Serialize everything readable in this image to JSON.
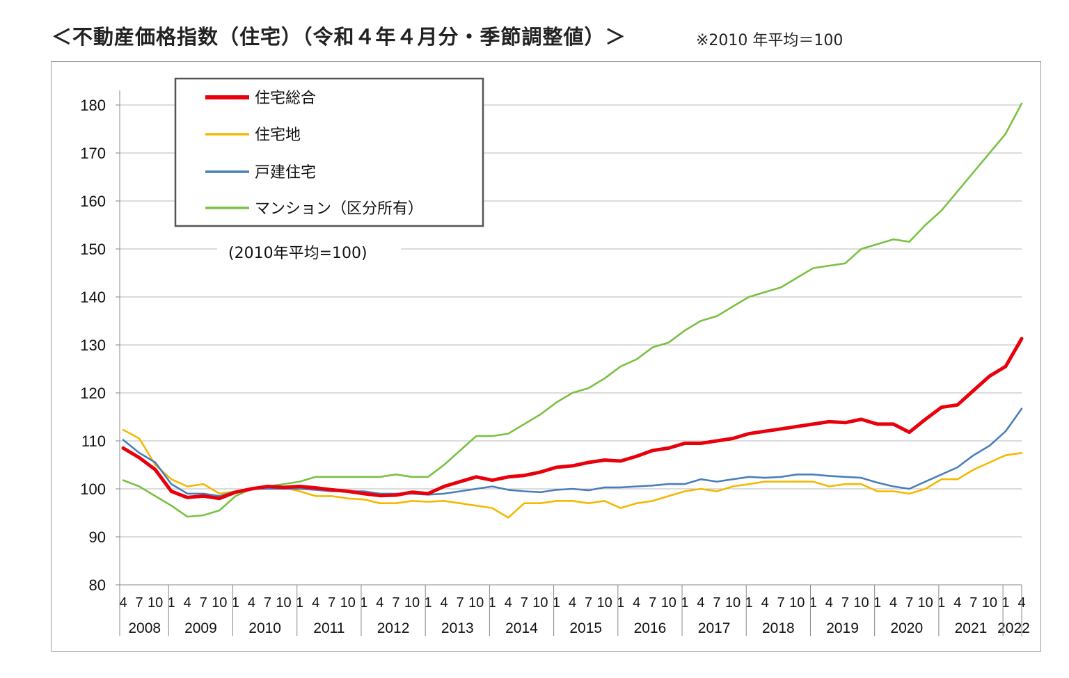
{
  "header": {
    "title": "＜不動産価格指数（住宅）（令和４年４月分・季節調整値）＞",
    "note": "※2010 年平均＝100"
  },
  "chart_data": {
    "type": "line",
    "title": "＜不動産価格指数（住宅）（令和４年４月分・季節調整値）＞",
    "basis_note": "(2010年平均=100)",
    "ylim": [
      80,
      180
    ],
    "yticks": [
      80,
      90,
      100,
      110,
      120,
      130,
      140,
      150,
      160,
      170,
      180
    ],
    "grid": true,
    "legend_position": "top-left",
    "x_period": {
      "start": "2008-04",
      "end": "2022-04",
      "frequency": "monthly"
    },
    "years": [
      "2008",
      "2009",
      "2010",
      "2011",
      "2012",
      "2013",
      "2014",
      "2015",
      "2016",
      "2017",
      "2018",
      "2019",
      "2020",
      "2021",
      "2022"
    ],
    "month_ticks": [
      "1",
      "4",
      "7",
      "10"
    ],
    "series": [
      {
        "name": "住宅総合",
        "color": "#e8000b",
        "points": [
          [
            "2008-04",
            108.5
          ],
          [
            "2008-07",
            106.5
          ],
          [
            "2008-10",
            104
          ],
          [
            "2009-01",
            99.5
          ],
          [
            "2009-04",
            98.2
          ],
          [
            "2009-07",
            98.5
          ],
          [
            "2009-10",
            98
          ],
          [
            "2010-01",
            99.3
          ],
          [
            "2010-04",
            100
          ],
          [
            "2010-07",
            100.5
          ],
          [
            "2010-10",
            100.3
          ],
          [
            "2011-01",
            100.5
          ],
          [
            "2011-04",
            100.2
          ],
          [
            "2011-07",
            99.8
          ],
          [
            "2011-10",
            99.5
          ],
          [
            "2012-01",
            99
          ],
          [
            "2012-04",
            98.6
          ],
          [
            "2012-07",
            98.7
          ],
          [
            "2012-10",
            99.3
          ],
          [
            "2013-01",
            99
          ],
          [
            "2013-04",
            100.5
          ],
          [
            "2013-07",
            101.5
          ],
          [
            "2013-10",
            102.5
          ],
          [
            "2014-01",
            101.8
          ],
          [
            "2014-04",
            102.5
          ],
          [
            "2014-07",
            102.8
          ],
          [
            "2014-10",
            103.5
          ],
          [
            "2015-01",
            104.5
          ],
          [
            "2015-04",
            104.8
          ],
          [
            "2015-07",
            105.5
          ],
          [
            "2015-10",
            106
          ],
          [
            "2016-01",
            105.8
          ],
          [
            "2016-04",
            106.8
          ],
          [
            "2016-07",
            108
          ],
          [
            "2016-10",
            108.5
          ],
          [
            "2017-01",
            109.5
          ],
          [
            "2017-04",
            109.5
          ],
          [
            "2017-07",
            110
          ],
          [
            "2017-10",
            110.5
          ],
          [
            "2018-01",
            111.5
          ],
          [
            "2018-04",
            112
          ],
          [
            "2018-07",
            112.5
          ],
          [
            "2018-10",
            113
          ],
          [
            "2019-01",
            113.5
          ],
          [
            "2019-04",
            114
          ],
          [
            "2019-07",
            113.8
          ],
          [
            "2019-10",
            114.5
          ],
          [
            "2020-01",
            113.5
          ],
          [
            "2020-04",
            113.5
          ],
          [
            "2020-07",
            111.8
          ],
          [
            "2020-10",
            114.5
          ],
          [
            "2021-01",
            117
          ],
          [
            "2021-04",
            117.5
          ],
          [
            "2021-07",
            120.5
          ],
          [
            "2021-10",
            123.5
          ],
          [
            "2022-01",
            125.5
          ],
          [
            "2022-04",
            131.3
          ]
        ]
      },
      {
        "name": "住宅地",
        "color": "#f5b800",
        "points": [
          [
            "2008-04",
            112.3
          ],
          [
            "2008-07",
            110.5
          ],
          [
            "2008-10",
            105
          ],
          [
            "2009-01",
            102
          ],
          [
            "2009-04",
            100.5
          ],
          [
            "2009-07",
            101
          ],
          [
            "2009-10",
            99
          ],
          [
            "2010-01",
            99.5
          ],
          [
            "2010-04",
            100
          ],
          [
            "2010-07",
            100.5
          ],
          [
            "2010-10",
            100.3
          ],
          [
            "2011-01",
            99.5
          ],
          [
            "2011-04",
            98.5
          ],
          [
            "2011-07",
            98.5
          ],
          [
            "2011-10",
            98
          ],
          [
            "2012-01",
            97.8
          ],
          [
            "2012-04",
            97
          ],
          [
            "2012-07",
            97
          ],
          [
            "2012-10",
            97.5
          ],
          [
            "2013-01",
            97.3
          ],
          [
            "2013-04",
            97.5
          ],
          [
            "2013-07",
            97
          ],
          [
            "2013-10",
            96.5
          ],
          [
            "2014-01",
            96
          ],
          [
            "2014-04",
            94
          ],
          [
            "2014-07",
            97
          ],
          [
            "2014-10",
            97
          ],
          [
            "2015-01",
            97.5
          ],
          [
            "2015-04",
            97.5
          ],
          [
            "2015-07",
            97
          ],
          [
            "2015-10",
            97.5
          ],
          [
            "2016-01",
            96
          ],
          [
            "2016-04",
            97
          ],
          [
            "2016-07",
            97.5
          ],
          [
            "2016-10",
            98.5
          ],
          [
            "2017-01",
            99.5
          ],
          [
            "2017-04",
            100
          ],
          [
            "2017-07",
            99.5
          ],
          [
            "2017-10",
            100.5
          ],
          [
            "2018-01",
            101
          ],
          [
            "2018-04",
            101.5
          ],
          [
            "2018-07",
            101.5
          ],
          [
            "2018-10",
            101.5
          ],
          [
            "2019-01",
            101.5
          ],
          [
            "2019-04",
            100.5
          ],
          [
            "2019-07",
            101
          ],
          [
            "2019-10",
            101
          ],
          [
            "2020-01",
            99.5
          ],
          [
            "2020-04",
            99.5
          ],
          [
            "2020-07",
            99
          ],
          [
            "2020-10",
            100
          ],
          [
            "2021-01",
            102
          ],
          [
            "2021-04",
            102
          ],
          [
            "2021-07",
            104
          ],
          [
            "2021-10",
            105.5
          ],
          [
            "2022-01",
            107
          ],
          [
            "2022-04",
            107.5
          ]
        ]
      },
      {
        "name": "戸建住宅",
        "color": "#4a7ebb",
        "points": [
          [
            "2008-04",
            110.2
          ],
          [
            "2008-07",
            107.5
          ],
          [
            "2008-10",
            105.5
          ],
          [
            "2009-01",
            101
          ],
          [
            "2009-04",
            99
          ],
          [
            "2009-07",
            99
          ],
          [
            "2009-10",
            98.5
          ],
          [
            "2010-01",
            99.5
          ],
          [
            "2010-04",
            100
          ],
          [
            "2010-07",
            100
          ],
          [
            "2010-10",
            100
          ],
          [
            "2011-01",
            100
          ],
          [
            "2011-04",
            99.8
          ],
          [
            "2011-07",
            99.5
          ],
          [
            "2011-10",
            99.5
          ],
          [
            "2012-01",
            99.5
          ],
          [
            "2012-04",
            99
          ],
          [
            "2012-07",
            99
          ],
          [
            "2012-10",
            99
          ],
          [
            "2013-01",
            98.8
          ],
          [
            "2013-04",
            99
          ],
          [
            "2013-07",
            99.5
          ],
          [
            "2013-10",
            100
          ],
          [
            "2014-01",
            100.5
          ],
          [
            "2014-04",
            99.8
          ],
          [
            "2014-07",
            99.5
          ],
          [
            "2014-10",
            99.3
          ],
          [
            "2015-01",
            99.8
          ],
          [
            "2015-04",
            100
          ],
          [
            "2015-07",
            99.7
          ],
          [
            "2015-10",
            100.3
          ],
          [
            "2016-01",
            100.3
          ],
          [
            "2016-04",
            100.5
          ],
          [
            "2016-07",
            100.7
          ],
          [
            "2016-10",
            101
          ],
          [
            "2017-01",
            101
          ],
          [
            "2017-04",
            102
          ],
          [
            "2017-07",
            101.5
          ],
          [
            "2017-10",
            102
          ],
          [
            "2018-01",
            102.5
          ],
          [
            "2018-04",
            102.3
          ],
          [
            "2018-07",
            102.5
          ],
          [
            "2018-10",
            103
          ],
          [
            "2019-01",
            103
          ],
          [
            "2019-04",
            102.7
          ],
          [
            "2019-07",
            102.5
          ],
          [
            "2019-10",
            102.3
          ],
          [
            "2020-01",
            101.3
          ],
          [
            "2020-04",
            100.5
          ],
          [
            "2020-07",
            100
          ],
          [
            "2020-10",
            101.5
          ],
          [
            "2021-01",
            103
          ],
          [
            "2021-04",
            104.5
          ],
          [
            "2021-07",
            107
          ],
          [
            "2021-10",
            109
          ],
          [
            "2022-01",
            112
          ],
          [
            "2022-04",
            116.7
          ]
        ]
      },
      {
        "name": "マンション（区分所有）",
        "color": "#7ac143",
        "points": [
          [
            "2008-04",
            101.8
          ],
          [
            "2008-07",
            100.5
          ],
          [
            "2008-10",
            98.5
          ],
          [
            "2009-01",
            96.5
          ],
          [
            "2009-04",
            94.2
          ],
          [
            "2009-07",
            94.5
          ],
          [
            "2009-10",
            95.5
          ],
          [
            "2010-01",
            98.5
          ],
          [
            "2010-04",
            100
          ],
          [
            "2010-07",
            100.5
          ],
          [
            "2010-10",
            101
          ],
          [
            "2011-01",
            101.5
          ],
          [
            "2011-04",
            102.5
          ],
          [
            "2011-07",
            102.5
          ],
          [
            "2011-10",
            102.5
          ],
          [
            "2012-01",
            102.5
          ],
          [
            "2012-04",
            102.5
          ],
          [
            "2012-07",
            103
          ],
          [
            "2012-10",
            102.5
          ],
          [
            "2013-01",
            102.5
          ],
          [
            "2013-04",
            105
          ],
          [
            "2013-07",
            108
          ],
          [
            "2013-10",
            111
          ],
          [
            "2014-01",
            111
          ],
          [
            "2014-04",
            111.5
          ],
          [
            "2014-07",
            113.5
          ],
          [
            "2014-10",
            115.5
          ],
          [
            "2015-01",
            118
          ],
          [
            "2015-04",
            120
          ],
          [
            "2015-07",
            121
          ],
          [
            "2015-10",
            123
          ],
          [
            "2016-01",
            125.5
          ],
          [
            "2016-04",
            127
          ],
          [
            "2016-07",
            129.5
          ],
          [
            "2016-10",
            130.5
          ],
          [
            "2017-01",
            133
          ],
          [
            "2017-04",
            135
          ],
          [
            "2017-07",
            136
          ],
          [
            "2017-10",
            138
          ],
          [
            "2018-01",
            140
          ],
          [
            "2018-04",
            141
          ],
          [
            "2018-07",
            142
          ],
          [
            "2018-10",
            144
          ],
          [
            "2019-01",
            146
          ],
          [
            "2019-04",
            146.5
          ],
          [
            "2019-07",
            147
          ],
          [
            "2019-10",
            150
          ],
          [
            "2020-01",
            151
          ],
          [
            "2020-04",
            152
          ],
          [
            "2020-07",
            151.5
          ],
          [
            "2020-10",
            155
          ],
          [
            "2021-01",
            158
          ],
          [
            "2021-04",
            162
          ],
          [
            "2021-07",
            166
          ],
          [
            "2021-10",
            170
          ],
          [
            "2022-01",
            174
          ],
          [
            "2022-04",
            180.3
          ]
        ]
      }
    ]
  }
}
